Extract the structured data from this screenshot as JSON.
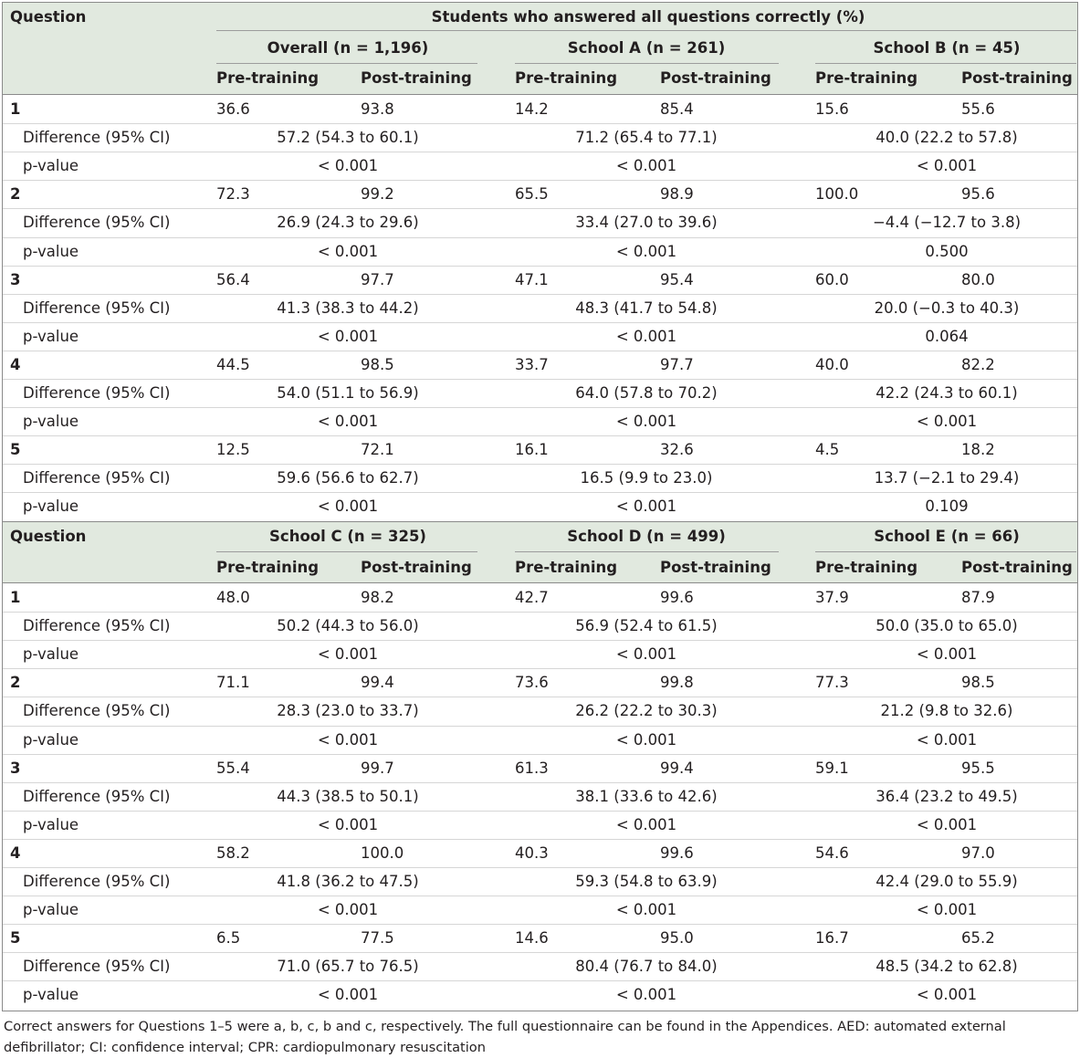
{
  "table1": {
    "question_label": "Question",
    "spanner": "Students who answered all questions correctly (%)",
    "groups": [
      "Overall (n = 1,196)",
      "School A (n = 261)",
      "School B (n = 45)"
    ],
    "pre_label": "Pre-training",
    "post_label": "Post-training",
    "diff_label": "Difference  (95% CI)",
    "p_label": "p-value",
    "rows": [
      {
        "q": "1",
        "vals": [
          [
            "36.6",
            "93.8"
          ],
          [
            "14.2",
            "85.4"
          ],
          [
            "15.6",
            "55.6"
          ]
        ],
        "diffs": [
          "57.2 (54.3 to 60.1)",
          "71.2 (65.4 to 77.1)",
          "40.0 (22.2 to 57.8)"
        ],
        "ps": [
          "< 0.001",
          "< 0.001",
          "< 0.001"
        ]
      },
      {
        "q": "2",
        "vals": [
          [
            "72.3",
            "99.2"
          ],
          [
            "65.5",
            "98.9"
          ],
          [
            "100.0",
            "95.6"
          ]
        ],
        "diffs": [
          "26.9 (24.3 to 29.6)",
          "33.4 (27.0 to 39.6)",
          "−4.4 (−12.7 to 3.8)"
        ],
        "ps": [
          "< 0.001",
          "< 0.001",
          "0.500"
        ]
      },
      {
        "q": "3",
        "vals": [
          [
            "56.4",
            "97.7"
          ],
          [
            "47.1",
            "95.4"
          ],
          [
            "60.0",
            "80.0"
          ]
        ],
        "diffs": [
          "41.3 (38.3 to 44.2)",
          "48.3 (41.7 to 54.8)",
          "20.0 (−0.3 to 40.3)"
        ],
        "ps": [
          "< 0.001",
          "< 0.001",
          "0.064"
        ]
      },
      {
        "q": "4",
        "vals": [
          [
            "44.5",
            "98.5"
          ],
          [
            "33.7",
            "97.7"
          ],
          [
            "40.0",
            "82.2"
          ]
        ],
        "diffs": [
          "54.0 (51.1 to 56.9)",
          "64.0 (57.8 to 70.2)",
          "42.2 (24.3 to 60.1)"
        ],
        "ps": [
          "< 0.001",
          "< 0.001",
          "< 0.001"
        ]
      },
      {
        "q": "5",
        "vals": [
          [
            "12.5",
            "72.1"
          ],
          [
            "16.1",
            "32.6"
          ],
          [
            "4.5",
            "18.2"
          ]
        ],
        "diffs": [
          "59.6 (56.6 to 62.7)",
          "16.5 (9.9 to 23.0)",
          "13.7 (−2.1 to 29.4)"
        ],
        "ps": [
          "< 0.001",
          "< 0.001",
          "0.109"
        ]
      }
    ]
  },
  "table2": {
    "question_label": "Question",
    "groups": [
      "School C (n = 325)",
      "School D (n = 499)",
      "School E (n = 66)"
    ],
    "pre_label": "Pre-training",
    "post_label": "Post-training",
    "diff_label": "Difference  (95% CI)",
    "p_label": "p-value",
    "rows": [
      {
        "q": "1",
        "vals": [
          [
            "48.0",
            "98.2"
          ],
          [
            "42.7",
            "99.6"
          ],
          [
            "37.9",
            "87.9"
          ]
        ],
        "diffs": [
          "50.2 (44.3 to 56.0)",
          "56.9 (52.4 to 61.5)",
          "50.0 (35.0 to 65.0)"
        ],
        "ps": [
          "< 0.001",
          "< 0.001",
          "< 0.001"
        ]
      },
      {
        "q": "2",
        "vals": [
          [
            "71.1",
            "99.4"
          ],
          [
            "73.6",
            "99.8"
          ],
          [
            "77.3",
            "98.5"
          ]
        ],
        "diffs": [
          "28.3 (23.0 to 33.7)",
          "26.2 (22.2 to 30.3)",
          "21.2 (9.8 to 32.6)"
        ],
        "ps": [
          "< 0.001",
          "< 0.001",
          "< 0.001"
        ]
      },
      {
        "q": "3",
        "vals": [
          [
            "55.4",
            "99.7"
          ],
          [
            "61.3",
            "99.4"
          ],
          [
            "59.1",
            "95.5"
          ]
        ],
        "diffs": [
          "44.3 (38.5 to 50.1)",
          "38.1 (33.6 to 42.6)",
          "36.4 (23.2 to 49.5)"
        ],
        "ps": [
          "< 0.001",
          "< 0.001",
          "< 0.001"
        ]
      },
      {
        "q": "4",
        "vals": [
          [
            "58.2",
            "100.0"
          ],
          [
            "40.3",
            "99.6"
          ],
          [
            "54.6",
            "97.0"
          ]
        ],
        "diffs": [
          "41.8 (36.2 to 47.5)",
          "59.3 (54.8 to 63.9)",
          "42.4 (29.0 to 55.9)"
        ],
        "ps": [
          "< 0.001",
          "< 0.001",
          "< 0.001"
        ]
      },
      {
        "q": "5",
        "vals": [
          [
            "6.5",
            "77.5"
          ],
          [
            "14.6",
            "95.0"
          ],
          [
            "16.7",
            "65.2"
          ]
        ],
        "diffs": [
          "71.0 (65.7 to 76.5)",
          "80.4 (76.7 to 84.0)",
          "48.5 (34.2 to 62.8)"
        ],
        "ps": [
          "< 0.001",
          "< 0.001",
          "< 0.001"
        ]
      }
    ]
  },
  "footnote": "Correct answers for Questions 1–5 were a, b, c, b and c, respectively. The full questionnaire can be found in the Appendices. AED: automated external defibrillator; CI: confidence interval; CPR: cardiopulmonary resuscitation",
  "colors": {
    "header_band": "#e1e9df",
    "text": "#231f20",
    "border": "#8a8a8a"
  }
}
